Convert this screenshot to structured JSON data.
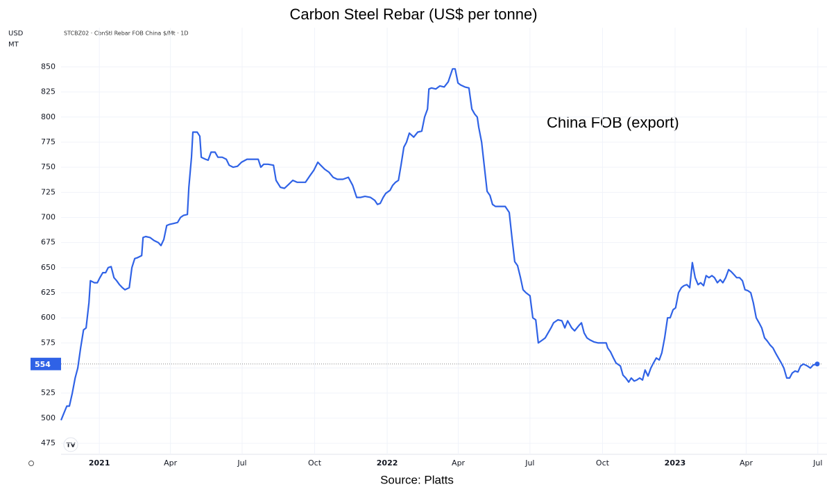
{
  "chart_data": {
    "type": "line",
    "title": "Carbon Steel Rebar (US$ per tonne)",
    "symbol_label": "STCBZ02 · CbnStl Rebar FOB China $/Mt · 1D",
    "units": [
      "USD",
      "MT"
    ],
    "annotation": "China FOB (export)",
    "source": "Source: Platts",
    "color": "#2f62e6",
    "grid": true,
    "x": [
      2020.867,
      2020.877,
      2020.887,
      2020.896,
      2020.906,
      2020.916,
      2020.925,
      2020.935,
      2020.945,
      2020.954,
      2020.964,
      2020.969,
      2020.983,
      2020.993,
      2021.002,
      2021.012,
      2021.022,
      2021.031,
      2021.041,
      2021.051,
      2021.06,
      2021.07,
      2021.08,
      2021.089,
      2021.104,
      2021.113,
      2021.123,
      2021.133,
      2021.147,
      2021.152,
      2021.161,
      2021.176,
      2021.19,
      2021.205,
      2021.214,
      2021.224,
      2021.234,
      2021.243,
      2021.258,
      2021.272,
      2021.282,
      2021.292,
      2021.306,
      2021.311,
      2021.32,
      2021.325,
      2021.34,
      2021.349,
      2021.354,
      2021.369,
      2021.378,
      2021.388,
      2021.402,
      2021.412,
      2021.427,
      2021.441,
      2021.451,
      2021.465,
      2021.48,
      2021.494,
      2021.513,
      2021.533,
      2021.552,
      2021.561,
      2021.571,
      2021.586,
      2021.605,
      2021.614,
      2021.629,
      2021.643,
      2021.658,
      2021.672,
      2021.687,
      2021.701,
      2021.716,
      2021.73,
      2021.745,
      2021.759,
      2021.769,
      2021.783,
      2021.798,
      2021.812,
      2021.827,
      2021.846,
      2021.865,
      2021.88,
      2021.894,
      2021.908,
      2021.923,
      2021.942,
      2021.957,
      2021.966,
      2021.976,
      2021.986,
      2021.995,
      2022.01,
      2022.019,
      2022.029,
      2022.039,
      2022.048,
      2022.058,
      2022.067,
      2022.077,
      2022.092,
      2022.106,
      2022.12,
      2022.13,
      2022.14,
      2022.145,
      2022.154,
      2022.169,
      2022.183,
      2022.198,
      2022.212,
      2022.227,
      2022.236,
      2022.246,
      2022.255,
      2022.27,
      2022.284,
      2022.294,
      2022.304,
      2022.313,
      2022.318,
      2022.328,
      2022.337,
      2022.347,
      2022.357,
      2022.366,
      2022.376,
      2022.39,
      2022.41,
      2022.424,
      2022.434,
      2022.443,
      2022.453,
      2022.463,
      2022.472,
      2022.482,
      2022.496,
      2022.506,
      2022.516,
      2022.525,
      2022.54,
      2022.549,
      2022.559,
      2022.569,
      2022.578,
      2022.593,
      2022.607,
      2022.617,
      2022.627,
      2022.641,
      2022.651,
      2022.665,
      2022.675,
      2022.684,
      2022.694,
      2022.704,
      2022.718,
      2022.733,
      2022.747,
      2022.761,
      2022.766,
      2022.776,
      2022.786,
      2022.795,
      2022.81,
      2022.819,
      2022.829,
      2022.839,
      2022.848,
      2022.858,
      2022.867,
      2022.877,
      2022.887,
      2022.896,
      2022.906,
      2022.916,
      2022.925,
      2022.935,
      2022.945,
      2022.954,
      2022.964,
      2022.974,
      2022.983,
      2022.993,
      2023.002,
      2023.012,
      2023.022,
      2023.031,
      2023.041,
      2023.051,
      2023.06,
      2023.07,
      2023.08,
      2023.089,
      2023.099,
      2023.108,
      2023.118,
      2023.128,
      2023.137,
      2023.147,
      2023.157,
      2023.166,
      2023.176,
      2023.186,
      2023.195,
      2023.205,
      2023.214,
      2023.224,
      2023.234,
      2023.243,
      2023.253,
      2023.263,
      2023.272,
      2023.282,
      2023.292,
      2023.301,
      2023.311,
      2023.32,
      2023.33,
      2023.34,
      2023.349,
      2023.359,
      2023.369,
      2023.378,
      2023.388,
      2023.398,
      2023.407,
      2023.417,
      2023.427,
      2023.436,
      2023.446,
      2023.46,
      2023.47,
      2023.48,
      2023.494
    ],
    "values": [
      498,
      505,
      512,
      512,
      525,
      540,
      550,
      570,
      588,
      590,
      615,
      637,
      635,
      635,
      640,
      645,
      645,
      650,
      651,
      640,
      637,
      633,
      630,
      628,
      630,
      650,
      659,
      660,
      662,
      680,
      681,
      680,
      677,
      675,
      672,
      678,
      692,
      693,
      694,
      695,
      700,
      702,
      703,
      730,
      760,
      785,
      785,
      781,
      760,
      758,
      757,
      765,
      765,
      760,
      760,
      758,
      752,
      750,
      751,
      755,
      758,
      758,
      758,
      750,
      753,
      753,
      752,
      737,
      730,
      729,
      733,
      737,
      735,
      735,
      735,
      741,
      747,
      755,
      752,
      748,
      745,
      740,
      738,
      738,
      740,
      732,
      720,
      720,
      721,
      720,
      717,
      713,
      714,
      720,
      724,
      727,
      732,
      735,
      737,
      752,
      770,
      775,
      784,
      780,
      785,
      786,
      800,
      808,
      828,
      829,
      828,
      831,
      830,
      835,
      848,
      848,
      834,
      832,
      830,
      829,
      808,
      803,
      800,
      790,
      775,
      752,
      726,
      722,
      713,
      711,
      711,
      711,
      705,
      678,
      656,
      652,
      640,
      628,
      625,
      622,
      600,
      598,
      575,
      578,
      580,
      585,
      590,
      595,
      598,
      597,
      590,
      597,
      590,
      587,
      592,
      595,
      585,
      580,
      578,
      576,
      575,
      575,
      575,
      570,
      566,
      560,
      555,
      552,
      543,
      540,
      536,
      540,
      537,
      538,
      540,
      538,
      548,
      542,
      550,
      555,
      560,
      558,
      565,
      580,
      600,
      600,
      608,
      610,
      625,
      630,
      632,
      633,
      630,
      655,
      640,
      633,
      635,
      632,
      642,
      640,
      642,
      640,
      635,
      638,
      635,
      640,
      648,
      646,
      643,
      640,
      640,
      637,
      628,
      627,
      625,
      615,
      600,
      595,
      590,
      580,
      577,
      573,
      570,
      565,
      560,
      555,
      550,
      540,
      540,
      545,
      547,
      546,
      552,
      554,
      552,
      550,
      553,
      554
    ],
    "xlim": [
      2020.867,
      2023.511
    ],
    "xticks": [
      2021,
      {
        "value": 2021.247,
        "label": "Apr"
      },
      {
        "value": 2021.496,
        "label": "Jul"
      },
      {
        "value": 2021.748,
        "label": "Oct"
      },
      2022,
      {
        "value": 2022.247,
        "label": "Apr"
      },
      {
        "value": 2022.496,
        "label": "Jul"
      },
      {
        "value": 2022.748,
        "label": "Oct"
      },
      2023,
      {
        "value": 2023.247,
        "label": "Apr"
      },
      {
        "value": 2023.496,
        "label": "Jul"
      }
    ],
    "ylim": [
      464,
      889
    ],
    "yticks": [
      475,
      500,
      525,
      550,
      575,
      600,
      625,
      650,
      675,
      700,
      725,
      750,
      775,
      800,
      825,
      850
    ]
  }
}
